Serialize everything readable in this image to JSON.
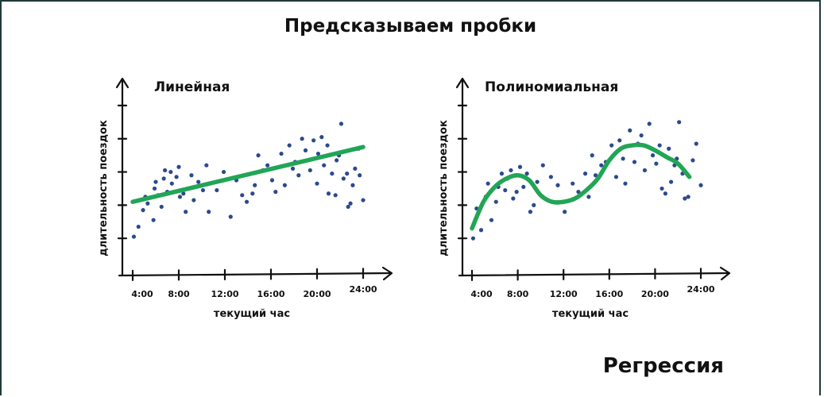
{
  "page": {
    "title": "Предсказываем пробки",
    "footer": "Регрессия"
  },
  "colors": {
    "points": "#2b4a8c",
    "fit_line": "#22a556",
    "axes": "#111111"
  },
  "chart_data": [
    {
      "type": "scatter",
      "title": "Линейная",
      "xlabel": "текущий час",
      "ylabel": "длительность поездок",
      "x_ticks": [
        "4:00",
        "8:00",
        "12:00",
        "16:00",
        "20:00",
        "24:00"
      ],
      "xlim": [
        3.5,
        26
      ],
      "ylim": [
        0,
        11
      ],
      "fit": {
        "kind": "linear",
        "x": [
          4,
          24
        ],
        "y": [
          4.2,
          7.5
        ]
      },
      "points": [
        [
          4.1,
          2.1
        ],
        [
          4.5,
          2.7
        ],
        [
          4.9,
          3.7
        ],
        [
          5.1,
          4.5
        ],
        [
          5.3,
          4.1
        ],
        [
          5.8,
          3.1
        ],
        [
          5.9,
          5.0
        ],
        [
          6.0,
          5.4
        ],
        [
          6.2,
          4.6
        ],
        [
          6.5,
          3.9
        ],
        [
          6.7,
          5.6
        ],
        [
          6.8,
          6.1
        ],
        [
          7.0,
          4.8
        ],
        [
          7.3,
          6.0
        ],
        [
          7.4,
          5.3
        ],
        [
          7.8,
          5.7
        ],
        [
          8.0,
          6.3
        ],
        [
          8.1,
          4.5
        ],
        [
          8.4,
          4.7
        ],
        [
          8.6,
          3.6
        ],
        [
          8.9,
          5.0
        ],
        [
          9.1,
          5.8
        ],
        [
          9.3,
          4.3
        ],
        [
          9.7,
          5.4
        ],
        [
          10.1,
          4.9
        ],
        [
          10.4,
          6.4
        ],
        [
          10.6,
          3.6
        ],
        [
          11.3,
          4.9
        ],
        [
          11.9,
          6.0
        ],
        [
          12.5,
          3.3
        ],
        [
          13.0,
          5.5
        ],
        [
          13.5,
          4.6
        ],
        [
          13.9,
          4.2
        ],
        [
          14.4,
          4.7
        ],
        [
          14.6,
          5.2
        ],
        [
          14.9,
          7.0
        ],
        [
          15.3,
          6.1
        ],
        [
          15.7,
          6.4
        ],
        [
          16.1,
          5.5
        ],
        [
          16.4,
          4.8
        ],
        [
          16.9,
          7.1
        ],
        [
          17.2,
          5.2
        ],
        [
          17.6,
          7.6
        ],
        [
          17.9,
          6.2
        ],
        [
          18.1,
          6.6
        ],
        [
          18.4,
          5.8
        ],
        [
          18.7,
          8.0
        ],
        [
          19.0,
          7.3
        ],
        [
          19.4,
          6.1
        ],
        [
          19.7,
          7.9
        ],
        [
          20.0,
          5.3
        ],
        [
          20.1,
          7.1
        ],
        [
          20.4,
          8.1
        ],
        [
          20.6,
          6.4
        ],
        [
          20.9,
          7.6
        ],
        [
          21.0,
          4.7
        ],
        [
          21.3,
          5.9
        ],
        [
          21.6,
          4.6
        ],
        [
          21.7,
          6.7
        ],
        [
          21.9,
          7.0
        ],
        [
          22.1,
          8.9
        ],
        [
          22.3,
          5.6
        ],
        [
          22.6,
          5.9
        ],
        [
          22.7,
          3.9
        ],
        [
          22.9,
          4.1
        ],
        [
          23.1,
          5.2
        ],
        [
          23.3,
          6.2
        ],
        [
          23.6,
          7.4
        ],
        [
          23.7,
          5.8
        ],
        [
          24.0,
          4.3
        ]
      ]
    },
    {
      "type": "scatter",
      "title": "Полиномиальная",
      "xlabel": "текущий час",
      "ylabel": "длительность поездок",
      "x_ticks": [
        "4:00",
        "8:00",
        "12:00",
        "16:00",
        "20:00",
        "24:00"
      ],
      "xlim": [
        3.5,
        26
      ],
      "ylim": [
        0,
        11
      ],
      "fit": {
        "kind": "polynomial",
        "x": [
          4,
          5,
          6,
          7,
          8,
          9,
          10,
          11,
          12,
          13,
          14,
          15,
          16,
          17,
          18,
          19,
          20,
          21,
          22,
          23
        ],
        "y": [
          2.6,
          4.2,
          5.1,
          5.6,
          5.8,
          5.5,
          4.6,
          4.2,
          4.2,
          4.4,
          4.9,
          5.6,
          6.7,
          7.4,
          7.6,
          7.6,
          7.3,
          6.9,
          6.5,
          5.7
        ]
      },
      "points": [
        [
          4.1,
          2.0
        ],
        [
          4.4,
          3.8
        ],
        [
          4.8,
          2.5
        ],
        [
          5.2,
          4.5
        ],
        [
          5.4,
          5.3
        ],
        [
          5.7,
          3.1
        ],
        [
          6.1,
          4.2
        ],
        [
          6.3,
          5.1
        ],
        [
          6.6,
          5.9
        ],
        [
          6.9,
          4.9
        ],
        [
          7.1,
          5.6
        ],
        [
          7.4,
          6.1
        ],
        [
          7.6,
          4.4
        ],
        [
          7.9,
          4.8
        ],
        [
          8.2,
          6.3
        ],
        [
          8.5,
          5.1
        ],
        [
          8.8,
          5.9
        ],
        [
          9.1,
          3.6
        ],
        [
          9.4,
          4.0
        ],
        [
          9.7,
          5.4
        ],
        [
          10.2,
          6.4
        ],
        [
          10.6,
          4.3
        ],
        [
          10.9,
          5.7
        ],
        [
          11.5,
          5.2
        ],
        [
          12.1,
          3.6
        ],
        [
          12.8,
          5.3
        ],
        [
          13.3,
          4.8
        ],
        [
          13.9,
          5.9
        ],
        [
          14.2,
          4.5
        ],
        [
          14.5,
          7.0
        ],
        [
          14.8,
          5.8
        ],
        [
          15.3,
          6.4
        ],
        [
          15.7,
          6.6
        ],
        [
          16.2,
          7.6
        ],
        [
          16.6,
          5.7
        ],
        [
          16.9,
          7.9
        ],
        [
          17.2,
          6.8
        ],
        [
          17.4,
          5.3
        ],
        [
          17.8,
          8.5
        ],
        [
          18.2,
          6.6
        ],
        [
          18.5,
          7.7
        ],
        [
          18.8,
          8.2
        ],
        [
          19.1,
          6.1
        ],
        [
          19.5,
          8.9
        ],
        [
          19.8,
          7.0
        ],
        [
          20.1,
          6.5
        ],
        [
          20.4,
          7.6
        ],
        [
          20.6,
          5.0
        ],
        [
          20.9,
          4.7
        ],
        [
          21.2,
          7.4
        ],
        [
          21.4,
          5.4
        ],
        [
          21.7,
          6.4
        ],
        [
          21.9,
          6.8
        ],
        [
          22.1,
          9.0
        ],
        [
          22.4,
          5.9
        ],
        [
          22.6,
          4.4
        ],
        [
          22.9,
          4.5
        ],
        [
          23.3,
          6.7
        ],
        [
          23.6,
          7.7
        ],
        [
          24.0,
          5.2
        ]
      ]
    }
  ]
}
